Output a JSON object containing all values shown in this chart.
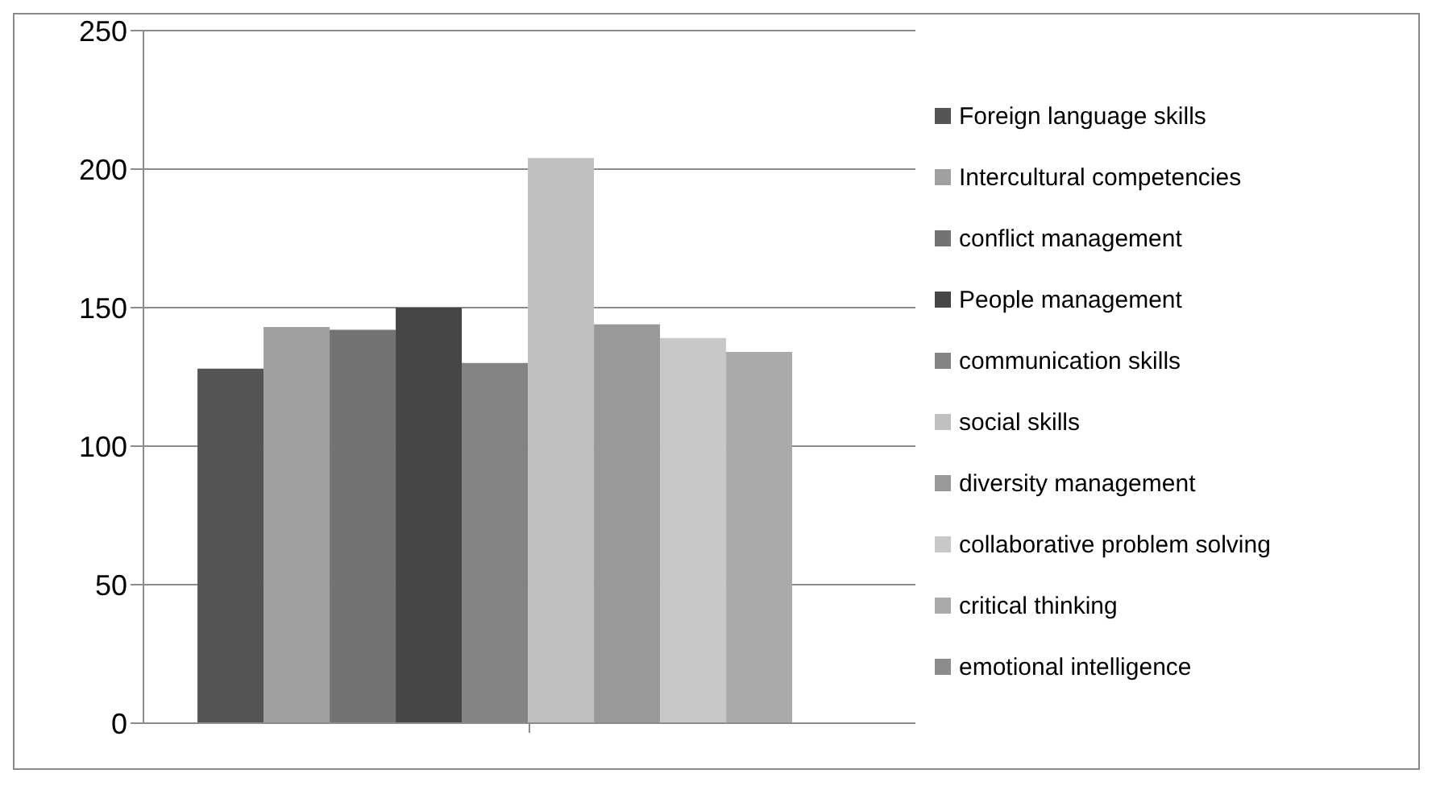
{
  "chart_data": {
    "type": "bar",
    "categories": [
      null
    ],
    "series": [
      {
        "name": "Foreign language skills",
        "color": "#555555",
        "values": [
          128
        ]
      },
      {
        "name": "Intercultural competencies",
        "color": "#a0a0a0",
        "values": [
          143
        ]
      },
      {
        "name": "conflict management",
        "color": "#737373",
        "values": [
          142
        ]
      },
      {
        "name": "People management",
        "color": "#464646",
        "values": [
          150
        ]
      },
      {
        "name": "communication skills",
        "color": "#838383",
        "values": [
          130
        ]
      },
      {
        "name": "social skills",
        "color": "#c0c0c0",
        "values": [
          204
        ]
      },
      {
        "name": "diversity management",
        "color": "#999999",
        "values": [
          144
        ]
      },
      {
        "name": "collaborative problem solving",
        "color": "#c8c8c8",
        "values": [
          139
        ]
      },
      {
        "name": "critical thinking",
        "color": "#aaaaaa",
        "values": [
          134
        ]
      },
      {
        "name": "emotional intelligence",
        "color": "#8c8c8c",
        "values": [
          null
        ]
      }
    ],
    "ylim": [
      0,
      250
    ],
    "yticks": [
      0,
      50,
      100,
      150,
      200,
      250
    ],
    "grid": "y",
    "legend": "right"
  }
}
